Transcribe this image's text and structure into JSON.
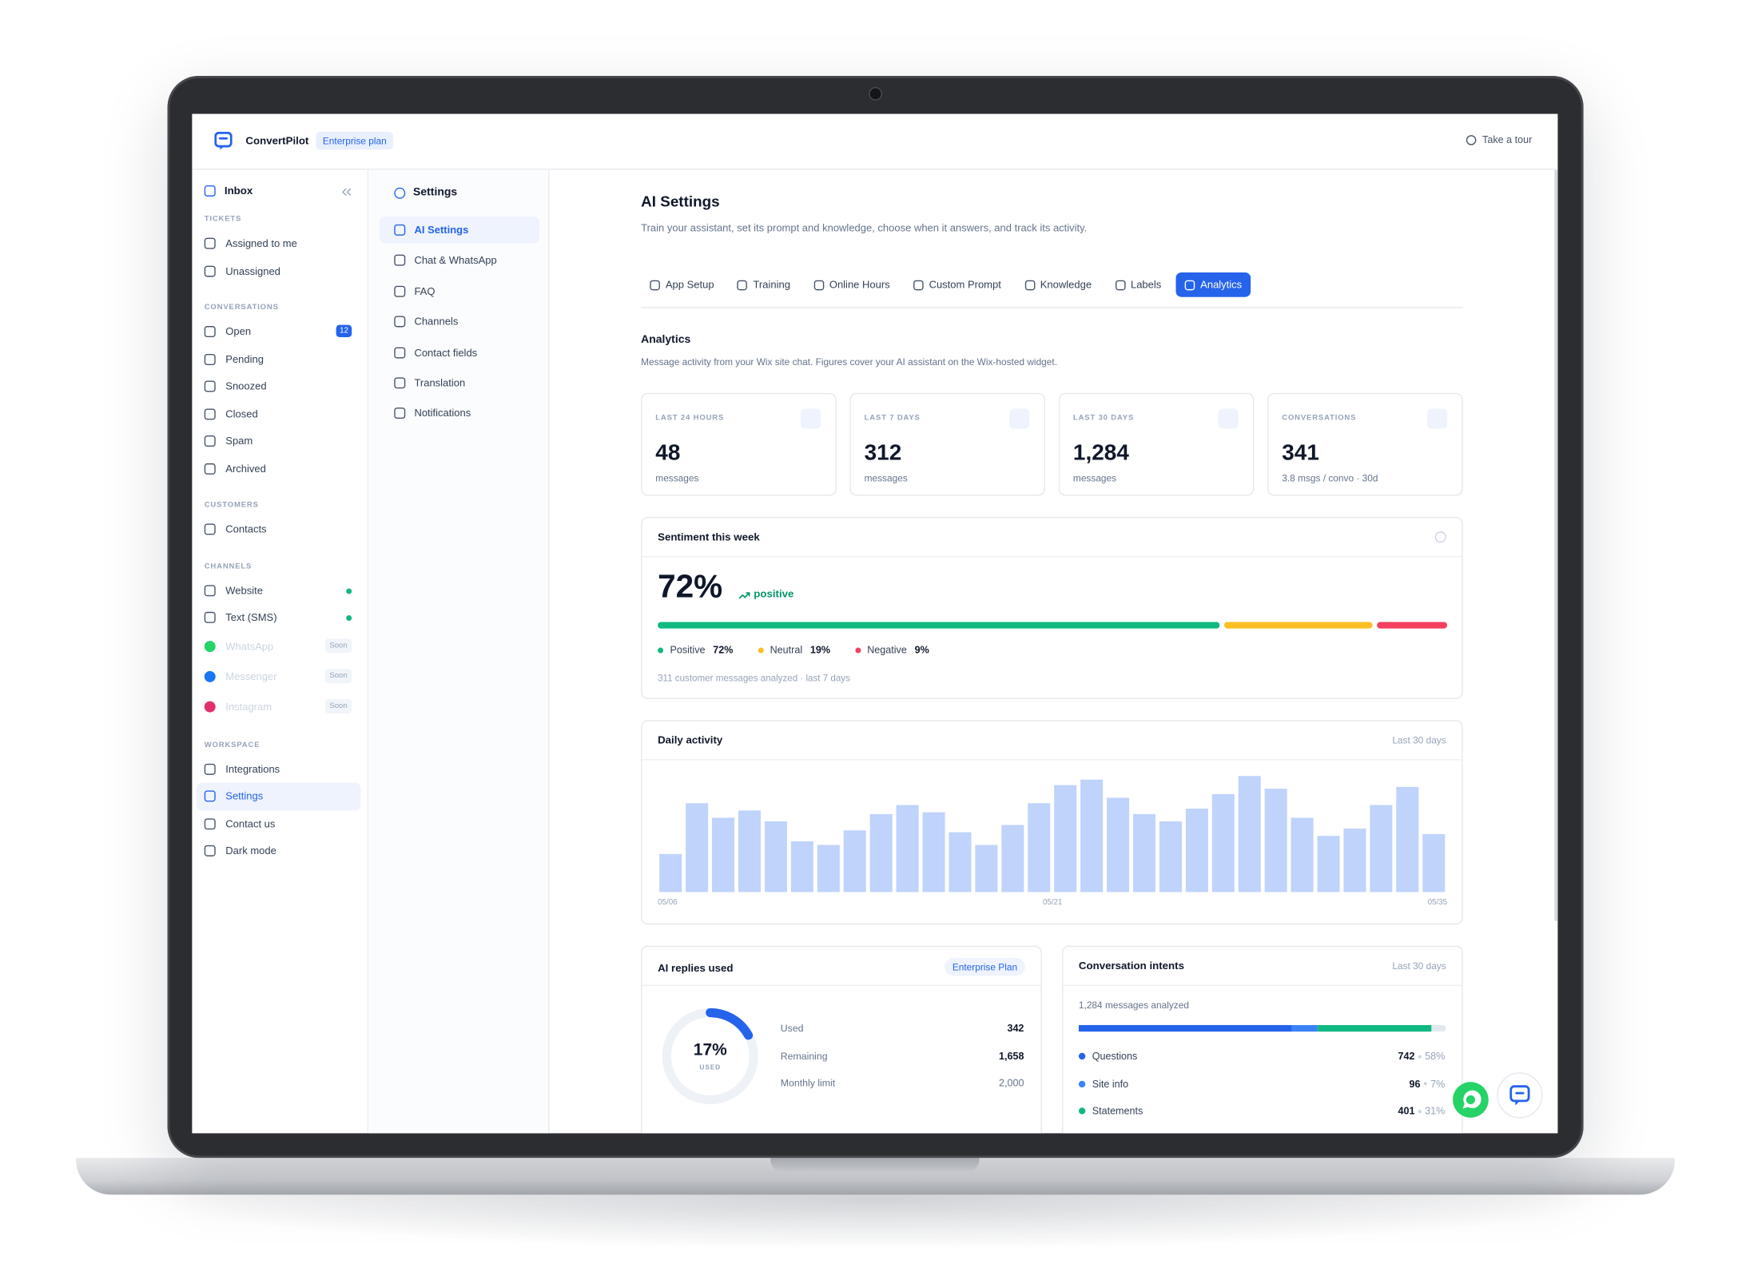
{
  "app": {
    "brand": "ConvertPilot",
    "plan_badge": "Enterprise plan",
    "tour": "Take a tour"
  },
  "sidebar": {
    "inbox": "Inbox",
    "sections": [
      {
        "title": "TICKETS",
        "items": [
          {
            "label": "Assigned to me"
          },
          {
            "label": "Unassigned"
          }
        ]
      },
      {
        "title": "CONVERSATIONS",
        "items": [
          {
            "label": "Open",
            "count": "12"
          },
          {
            "label": "Pending"
          },
          {
            "label": "Snoozed"
          },
          {
            "label": "Closed"
          },
          {
            "label": "Spam"
          },
          {
            "label": "Archived"
          }
        ]
      },
      {
        "title": "CUSTOMERS",
        "items": [
          {
            "label": "Contacts"
          }
        ]
      },
      {
        "title": "CHANNELS",
        "items": [
          {
            "label": "Website",
            "online": true
          },
          {
            "label": "Text (SMS)",
            "online": true
          },
          {
            "label": "WhatsApp",
            "badge": "Soon",
            "icon_color": "#25d366"
          },
          {
            "label": "Messenger",
            "badge": "Soon",
            "icon_color": "#1877f2"
          },
          {
            "label": "Instagram",
            "badge": "Soon",
            "icon_color": "#e1306c"
          }
        ]
      },
      {
        "title": "WORKSPACE",
        "items": [
          {
            "label": "Integrations"
          },
          {
            "label": "Settings",
            "active": true
          },
          {
            "label": "Contact us"
          },
          {
            "label": "Dark mode"
          }
        ]
      }
    ]
  },
  "settings_nav": {
    "title": "Settings",
    "items": [
      {
        "label": "AI Settings",
        "active": true
      },
      {
        "label": "Chat & WhatsApp"
      },
      {
        "label": "FAQ"
      },
      {
        "label": "Channels"
      },
      {
        "label": "Contact fields"
      },
      {
        "label": "Translation"
      },
      {
        "label": "Notifications"
      }
    ]
  },
  "page": {
    "title": "AI Settings",
    "description": "Train your assistant, set its prompt and knowledge, choose when it answers, and track its activity.",
    "tabs": [
      {
        "label": "App Setup"
      },
      {
        "label": "Training"
      },
      {
        "label": "Online Hours"
      },
      {
        "label": "Custom Prompt"
      },
      {
        "label": "Knowledge"
      },
      {
        "label": "Labels"
      },
      {
        "label": "Analytics",
        "active": true
      }
    ]
  },
  "analytics": {
    "title": "Analytics",
    "description": "Message activity from your Wix site chat. Figures cover your AI assistant on the Wix-hosted widget.",
    "stats": [
      {
        "label": "LAST 24 HOURS",
        "value": "48",
        "unit": "messages"
      },
      {
        "label": "LAST 7 DAYS",
        "value": "312",
        "unit": "messages"
      },
      {
        "label": "LAST 30 DAYS",
        "value": "1,284",
        "unit": "messages"
      },
      {
        "label": "CONVERSATIONS",
        "value": "341",
        "unit": "3.8 msgs / convo · 30d"
      }
    ]
  },
  "sentiment": {
    "title": "Sentiment this week",
    "headline": "72%",
    "trend": "positive",
    "items": [
      {
        "name": "Positive",
        "value": 72,
        "label": "72%",
        "color": "#10b981"
      },
      {
        "name": "Neutral",
        "value": 19,
        "label": "19%",
        "color": "#fbbf24"
      },
      {
        "name": "Negative",
        "value": 9,
        "label": "9%",
        "color": "#f43f5e"
      }
    ],
    "footnote": "311 customer messages analyzed · last 7 days"
  },
  "daily_activity": {
    "title": "Daily activity",
    "range": "Last 30 days",
    "color": "#bfd3fb",
    "values": [
      21,
      49,
      41,
      45,
      39,
      28,
      26,
      34,
      43,
      48,
      44,
      33,
      26,
      37,
      49,
      59,
      62,
      52,
      43,
      39,
      46,
      54,
      64,
      57,
      41,
      31,
      35,
      48,
      58,
      32
    ],
    "x_labels": [
      "05/06",
      "05/21",
      "05/35"
    ]
  },
  "ai_replies": {
    "title": "AI replies used",
    "badge": "Enterprise Plan",
    "used_pct": 17,
    "used_pct_label": "17%",
    "used_caption": "USED",
    "rows": [
      {
        "label": "Used",
        "value": "342"
      },
      {
        "label": "Remaining",
        "value": "1,658"
      },
      {
        "label": "Monthly limit",
        "value": "2,000"
      }
    ]
  },
  "intents": {
    "title": "Conversation intents",
    "range": "Last 30 days",
    "summary": "1,284 messages analyzed",
    "items": [
      {
        "name": "Questions",
        "count": "742",
        "share": "58%",
        "share_value": 58,
        "color": "#2563eb"
      },
      {
        "name": "Site info",
        "count": "96",
        "share": "7%",
        "share_value": 7,
        "color": "#3b82f6"
      },
      {
        "name": "Statements",
        "count": "401",
        "share": "31%",
        "share_value": 31,
        "color": "#10b981"
      }
    ]
  }
}
